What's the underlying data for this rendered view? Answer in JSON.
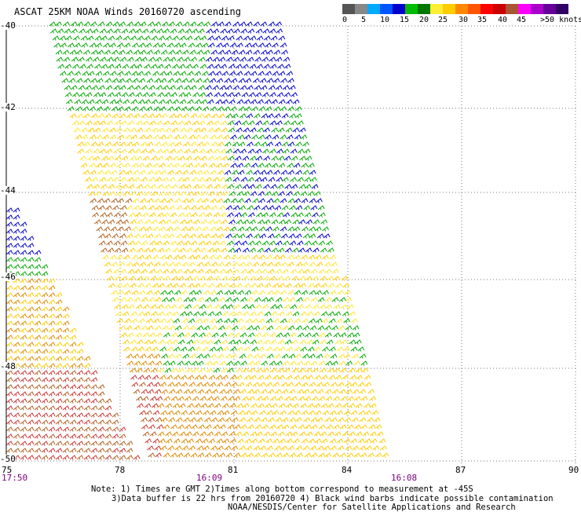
{
  "title": "ASCAT 25KM NOAA Winds 20160720 ascending",
  "legend": {
    "colors": [
      "#555555",
      "#888888",
      "#00aaff",
      "#0055ff",
      "#0000cc",
      "#00bb00",
      "#007700",
      "#ffee33",
      "#ffcc00",
      "#ff8800",
      "#ff5500",
      "#ff0000",
      "#cc0000",
      "#aa5533",
      "#ff00ff",
      "#aa00cc",
      "#660099",
      "#330066"
    ],
    "labels": [
      "0",
      "5",
      "10",
      "15",
      "20",
      "25",
      "30",
      "35",
      "40",
      "45",
      ">50 knots"
    ]
  },
  "map": {
    "lon_ticks": [
      "75",
      "78",
      "81",
      "84",
      "87",
      "90"
    ],
    "lat_ticks": [
      "-40",
      "-42",
      "-44",
      "-46",
      "-48",
      "-50"
    ],
    "lon_range": [
      75,
      90
    ],
    "lat_range": [
      -40,
      -50
    ],
    "grid": "dotted"
  },
  "times": [
    "17:50",
    "16:09",
    "16:08"
  ],
  "notes": {
    "line1": "Note: 1) Times are GMT 2)Times along bottom correspond to measurement at -45S",
    "line2": "3)Data buffer is 22 hrs from 20160720 4) Black wind barbs indicate possible contamination",
    "line3": "NOAA/NESDIS/Center for Satellite Applications and Research"
  },
  "wind_colors": {
    "blue": "#0000cc",
    "green": "#00aa00",
    "darkgreen": "#006600",
    "yellow": "#ffe633",
    "gold": "#ffcc00",
    "orange": "#e08a00",
    "brown": "#b06020",
    "red": "#cc3333"
  }
}
